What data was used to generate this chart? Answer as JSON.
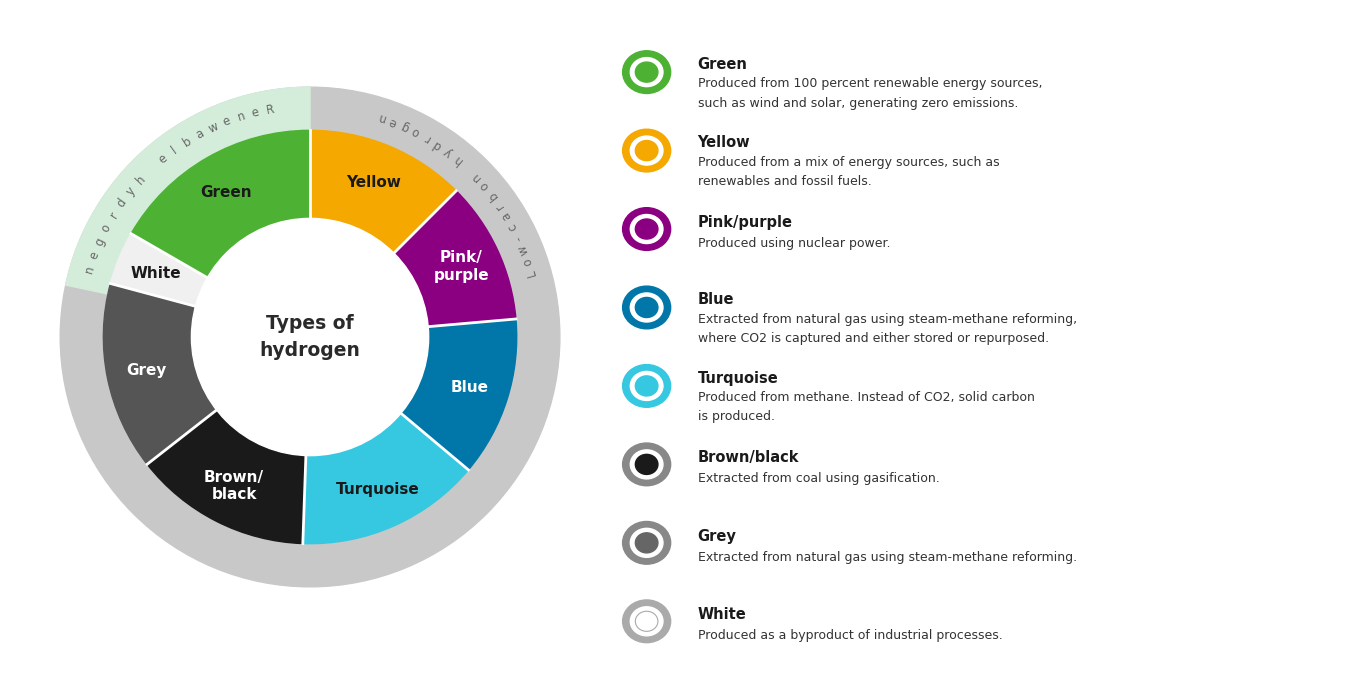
{
  "segment_angles": [
    {
      "label": "Green",
      "color": "#4db233",
      "text_color": "#1a1a1a",
      "theta1": 90,
      "theta2": 150
    },
    {
      "label": "Yellow",
      "color": "#f5a800",
      "text_color": "#1a1a1a",
      "theta1": 45,
      "theta2": 90
    },
    {
      "label": "Pink/\npurple",
      "color": "#8b0080",
      "text_color": "#ffffff",
      "theta1": 5,
      "theta2": 45
    },
    {
      "label": "Blue",
      "color": "#0077a8",
      "text_color": "#ffffff",
      "theta1": 320,
      "theta2": 365
    },
    {
      "label": "Turquoise",
      "color": "#35c8e0",
      "text_color": "#1a1a1a",
      "theta1": 268,
      "theta2": 320
    },
    {
      "label": "Brown/\nblack",
      "color": "#1a1a1a",
      "text_color": "#ffffff",
      "theta1": 218,
      "theta2": 268
    },
    {
      "label": "Grey",
      "color": "#555555",
      "text_color": "#ffffff",
      "theta1": 165,
      "theta2": 218
    },
    {
      "label": "White",
      "color": "#f0f0f0",
      "text_color": "#1a1a1a",
      "theta1": 150,
      "theta2": 165
    }
  ],
  "R_outer": 2.3,
  "R_inner": 1.32,
  "R_bg_outer": 2.78,
  "outer_ring_color": "#c8c8c8",
  "renewable_arc_color": "#d4edda",
  "center_text": "Types of\nhydrogen",
  "low_carbon_text": "Low-carbon hydrogen",
  "renewable_text": "Renewable hydrogen",
  "legend_items": [
    {
      "title": "Green",
      "inner_color": "#4db233",
      "ring_color": "#4db233",
      "desc_line1": "Produced from 100 percent renewable energy sources,",
      "desc_line2": "such as wind and solar, generating zero emissions."
    },
    {
      "title": "Yellow",
      "inner_color": "#f5a800",
      "ring_color": "#f5a800",
      "desc_line1": "Produced from a mix of energy sources, such as",
      "desc_line2": "renewables and fossil fuels."
    },
    {
      "title": "Pink/purple",
      "inner_color": "#8b0080",
      "ring_color": "#8b0080",
      "desc_line1": "Produced using nuclear power.",
      "desc_line2": ""
    },
    {
      "title": "Blue",
      "inner_color": "#0077a8",
      "ring_color": "#0077a8",
      "desc_line1": "Extracted from natural gas using steam-methane reforming,",
      "desc_line2": "where CO2 is captured and either stored or repurposed."
    },
    {
      "title": "Turquoise",
      "inner_color": "#35c8e0",
      "ring_color": "#35c8e0",
      "desc_line1": "Produced from methane. Instead of CO2, solid carbon",
      "desc_line2": "is produced."
    },
    {
      "title": "Brown/black",
      "inner_color": "#1a1a1a",
      "ring_color": "#888888",
      "desc_line1": "Extracted from coal using gasification.",
      "desc_line2": ""
    },
    {
      "title": "Grey",
      "inner_color": "#666666",
      "ring_color": "#888888",
      "desc_line1": "Extracted from natural gas using steam-methane reforming.",
      "desc_line2": ""
    },
    {
      "title": "White",
      "inner_color": "#ffffff",
      "ring_color": "#aaaaaa",
      "desc_line1": "Produced as a byproduct of industrial processes.",
      "desc_line2": ""
    }
  ],
  "bg_color": "#ffffff"
}
